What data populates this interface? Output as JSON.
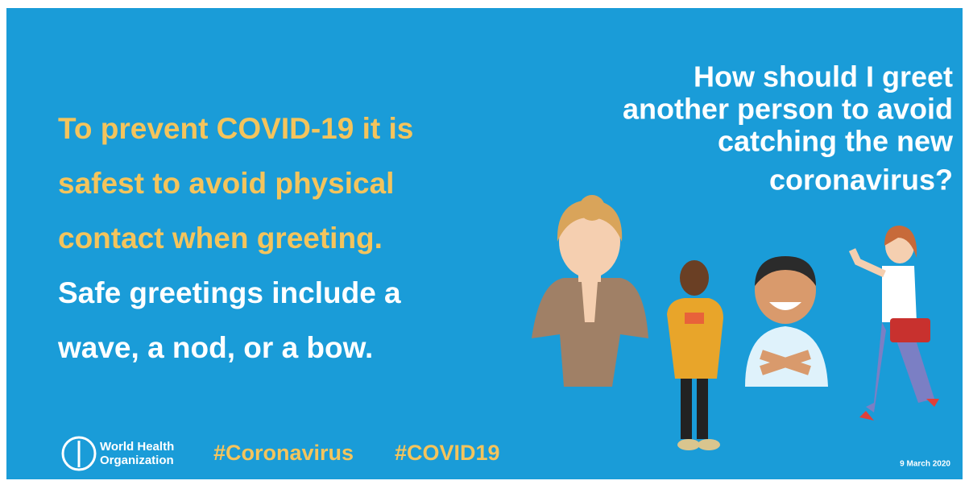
{
  "question": [
    "How should I greet",
    "another person to avoid",
    "catching the new",
    "coronavirus?"
  ],
  "advice": [
    "To prevent COVID-19 it is",
    "safest to avoid physical",
    "contact when greeting."
  ],
  "greetings": [
    "Safe greetings include a",
    "wave, a nod, or a bow."
  ],
  "footer": {
    "organization": [
      "World Health",
      "Organization"
    ],
    "hashtags": [
      "#Coronavirus",
      "#COVID19"
    ],
    "date": "9 March 2020"
  }
}
